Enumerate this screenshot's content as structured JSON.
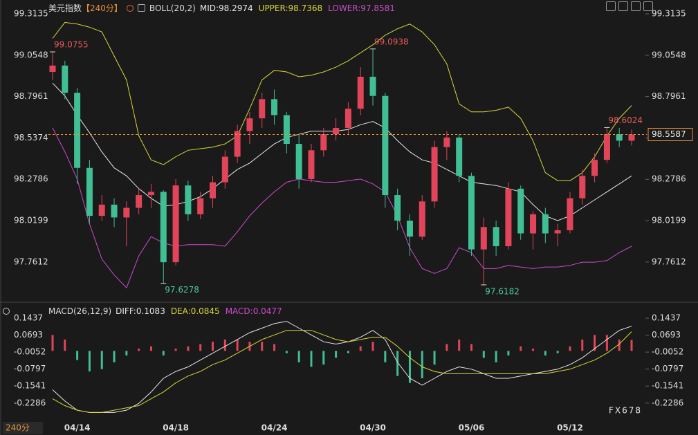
{
  "chart_data": [
    {
      "type": "candlestick",
      "title": "美元指数",
      "period": "【240分】",
      "indicator": "BOLL(20,2)",
      "legend": [
        {
          "label": "MID:98.2974",
          "color": "#e8e8e8"
        },
        {
          "label": "UPPER:98.7368",
          "color": "#d8d83c"
        },
        {
          "label": "LOWER:97.8581",
          "color": "#d04ad0"
        }
      ],
      "open": [
        98.95,
        98.99,
        98.82,
        98.35,
        98.05,
        98.12,
        98.04,
        98.1,
        98.18,
        98.2,
        97.76,
        98.24,
        98.06,
        98.16,
        98.26,
        98.42,
        98.58,
        98.66,
        98.78,
        98.68,
        98.5,
        98.28,
        98.46,
        98.56,
        98.6,
        98.72,
        98.92,
        98.8,
        98.18,
        98.02,
        97.92,
        98.14,
        98.48,
        98.54,
        98.3,
        97.84,
        97.98,
        97.86,
        98.22,
        97.94,
        98.06,
        97.94,
        97.96,
        98.16,
        98.3,
        98.4,
        98.56,
        98.52
      ],
      "high": [
        99.0755,
        99.02,
        98.85,
        98.4,
        98.18,
        98.16,
        98.14,
        98.22,
        98.25,
        98.21,
        98.28,
        98.27,
        98.2,
        98.3,
        98.46,
        98.62,
        98.7,
        98.82,
        98.84,
        98.7,
        98.56,
        98.5,
        98.6,
        98.66,
        98.76,
        98.98,
        99.0938,
        98.82,
        98.22,
        98.06,
        98.18,
        98.52,
        98.58,
        98.56,
        98.32,
        98.04,
        98.02,
        98.26,
        98.24,
        98.08,
        98.1,
        98.0,
        98.2,
        98.34,
        98.44,
        98.6024,
        98.6,
        98.59
      ],
      "low": [
        98.9,
        98.78,
        98.25,
        98.0,
        98.02,
        97.98,
        97.86,
        98.06,
        98.1,
        97.6278,
        97.74,
        98.02,
        98.03,
        98.1,
        98.22,
        98.38,
        98.5,
        98.6,
        98.62,
        98.44,
        98.22,
        98.26,
        98.42,
        98.52,
        98.56,
        98.68,
        98.74,
        98.1,
        97.96,
        97.8,
        97.9,
        98.1,
        98.4,
        98.26,
        97.8,
        97.6182,
        97.8,
        97.84,
        97.9,
        97.84,
        97.88,
        97.86,
        97.94,
        98.12,
        98.26,
        98.38,
        98.48,
        98.49
      ],
      "close": [
        98.99,
        98.82,
        98.35,
        98.05,
        98.12,
        98.04,
        98.1,
        98.18,
        98.2,
        97.76,
        98.24,
        98.06,
        98.16,
        98.26,
        98.42,
        98.58,
        98.66,
        98.78,
        98.68,
        98.5,
        98.28,
        98.46,
        98.56,
        98.6,
        98.72,
        98.92,
        98.8,
        98.18,
        98.02,
        97.92,
        98.14,
        98.48,
        98.54,
        98.3,
        97.84,
        97.98,
        97.86,
        98.22,
        97.94,
        98.06,
        97.94,
        97.96,
        98.16,
        98.3,
        98.4,
        98.56,
        98.52,
        98.5587
      ],
      "up_color": "#e2455a",
      "down_color": "#3fbf93",
      "high_annotations": [
        0,
        26,
        45
      ],
      "low_annotations": [
        9,
        35
      ],
      "bands": [
        {
          "color": "#d8d83c",
          "values": [
            99.16,
            99.26,
            99.25,
            99.23,
            99.2,
            99.05,
            98.9,
            98.55,
            98.4,
            98.37,
            98.42,
            98.46,
            98.47,
            98.48,
            98.5,
            98.55,
            98.72,
            98.9,
            98.96,
            98.95,
            98.92,
            98.93,
            98.95,
            98.98,
            99.02,
            99.07,
            99.12,
            99.18,
            99.22,
            99.25,
            99.2,
            99.12,
            99.0,
            98.75,
            98.7,
            98.7,
            98.71,
            98.73,
            98.66,
            98.52,
            98.32,
            98.27,
            98.27,
            98.32,
            98.42,
            98.55,
            98.66,
            98.74
          ]
        },
        {
          "color": "#e8e8e8",
          "values": [
            98.88,
            98.8,
            98.68,
            98.57,
            98.45,
            98.35,
            98.3,
            98.22,
            98.16,
            98.11,
            98.12,
            98.14,
            98.17,
            98.22,
            98.28,
            98.34,
            98.38,
            98.44,
            98.5,
            98.54,
            98.56,
            98.58,
            98.58,
            98.58,
            98.59,
            98.62,
            98.64,
            98.6,
            98.52,
            98.45,
            98.4,
            98.38,
            98.34,
            98.3,
            98.26,
            98.25,
            98.24,
            98.22,
            98.2,
            98.12,
            98.05,
            98.02,
            98.05,
            98.1,
            98.15,
            98.2,
            98.25,
            98.3
          ]
        },
        {
          "color": "#d04ad0",
          "values": [
            98.6,
            98.45,
            98.28,
            98.0,
            97.78,
            97.68,
            97.6,
            97.8,
            97.92,
            97.88,
            97.86,
            97.87,
            97.87,
            97.87,
            97.86,
            97.95,
            98.05,
            98.13,
            98.2,
            98.26,
            98.28,
            98.27,
            98.26,
            98.26,
            98.27,
            98.28,
            98.25,
            98.2,
            98.05,
            97.85,
            97.72,
            97.69,
            97.72,
            97.85,
            97.82,
            97.72,
            97.72,
            97.74,
            97.73,
            97.72,
            97.73,
            97.73,
            97.74,
            97.76,
            97.76,
            97.77,
            97.82,
            97.86
          ]
        }
      ],
      "last_price_color": "#e8923a",
      "ylim": [
        97.54,
        99.3135
      ],
      "yticks": [
        99.3135,
        99.0548,
        98.7961,
        98.5374,
        98.2786,
        98.0199,
        97.7612
      ]
    },
    {
      "type": "macd",
      "title": "MACD(26,12,9)",
      "legend": [
        {
          "label": "DIFF:0.1083",
          "color": "#e8e8e8"
        },
        {
          "label": "DEA:0.0845",
          "color": "#d8d83c"
        },
        {
          "label": "MACD:0.0477",
          "color": "#d04ad0"
        }
      ],
      "histogram": {
        "up_color": "#e2455a",
        "down_color": "#3fbf93",
        "values": [
          0.07,
          0.05,
          -0.04,
          -0.09,
          -0.08,
          -0.05,
          -0.02,
          0.01,
          0.02,
          -0.02,
          0.01,
          0.02,
          0.03,
          0.04,
          0.05,
          0.05,
          0.04,
          0.04,
          0.03,
          -0.01,
          -0.05,
          -0.07,
          -0.06,
          -0.03,
          -0.01,
          0.02,
          0.04,
          -0.05,
          -0.11,
          -0.14,
          -0.12,
          -0.06,
          0.03,
          0.05,
          0.03,
          -0.03,
          -0.05,
          -0.02,
          0.02,
          0.01,
          -0.02,
          -0.01,
          0.02,
          0.05,
          0.07,
          0.07,
          0.05,
          0.0477
        ]
      },
      "lines": [
        {
          "color": "#e8e8e8",
          "values": [
            -0.17,
            -0.22,
            -0.26,
            -0.27,
            -0.27,
            -0.27,
            -0.26,
            -0.23,
            -0.18,
            -0.12,
            -0.09,
            -0.07,
            -0.04,
            -0.01,
            0.02,
            0.05,
            0.08,
            0.1,
            0.12,
            0.13,
            0.1,
            0.07,
            0.04,
            0.03,
            0.04,
            0.06,
            0.09,
            0.05,
            -0.05,
            -0.12,
            -0.15,
            -0.12,
            -0.09,
            -0.07,
            -0.08,
            -0.1,
            -0.12,
            -0.12,
            -0.11,
            -0.1,
            -0.09,
            -0.08,
            -0.06,
            -0.03,
            0.01,
            0.05,
            0.09,
            0.1083
          ]
        },
        {
          "color": "#d8d83c",
          "values": [
            -0.21,
            -0.24,
            -0.26,
            -0.27,
            -0.27,
            -0.26,
            -0.25,
            -0.24,
            -0.21,
            -0.18,
            -0.14,
            -0.11,
            -0.09,
            -0.06,
            -0.04,
            -0.01,
            0.02,
            0.05,
            0.07,
            0.09,
            0.09,
            0.09,
            0.07,
            0.05,
            0.04,
            0.05,
            0.06,
            0.06,
            0.02,
            -0.03,
            -0.07,
            -0.09,
            -0.1,
            -0.1,
            -0.1,
            -0.1,
            -0.1,
            -0.1,
            -0.1,
            -0.1,
            -0.1,
            -0.09,
            -0.08,
            -0.06,
            -0.04,
            -0.01,
            0.03,
            0.0845
          ]
        }
      ],
      "categories": [
        null,
        null,
        "04/14",
        null,
        null,
        null,
        null,
        null,
        null,
        null,
        "04/18",
        null,
        null,
        null,
        null,
        null,
        null,
        null,
        "04/24",
        null,
        null,
        null,
        null,
        null,
        null,
        null,
        "04/30",
        null,
        null,
        null,
        null,
        null,
        null,
        null,
        "05/06",
        null,
        null,
        null,
        null,
        null,
        null,
        null,
        "05/12",
        null,
        null,
        null,
        null,
        null
      ],
      "period_label": "240分",
      "watermark": "FX678",
      "ylim": [
        -0.296,
        0.159
      ],
      "yticks": [
        0.1437,
        0.0693,
        -0.0052,
        -0.0797,
        -0.1541,
        -0.2286
      ]
    }
  ]
}
